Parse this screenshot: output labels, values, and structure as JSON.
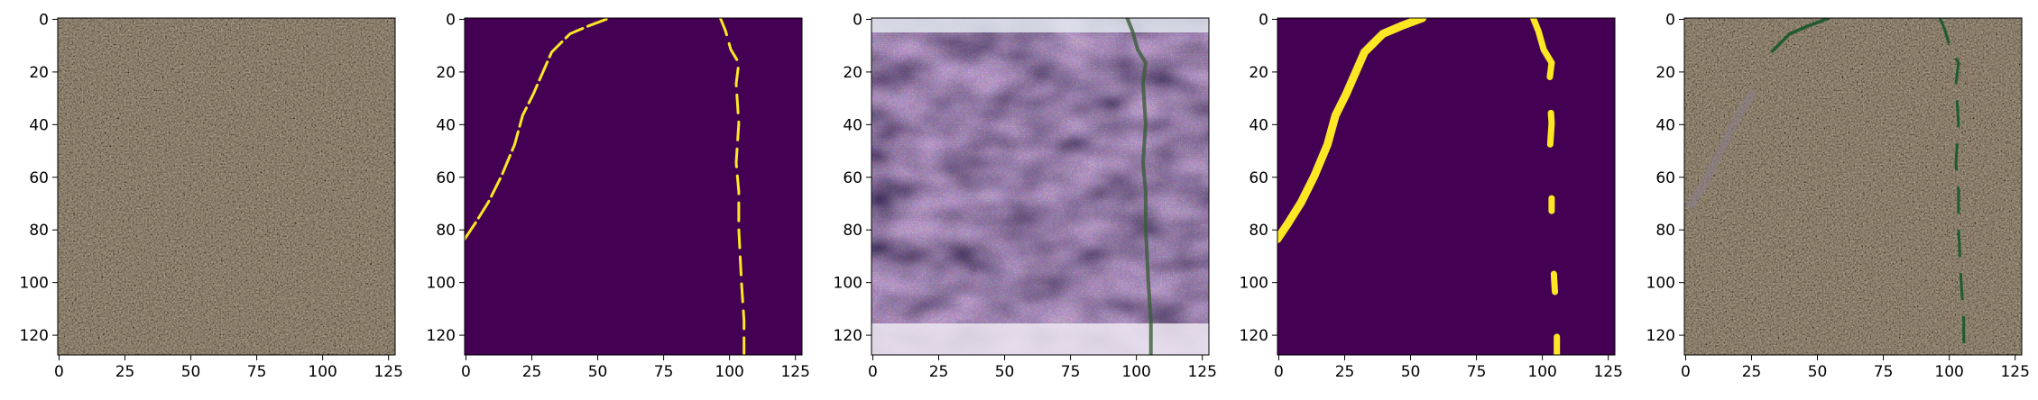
{
  "figure": {
    "panels": [
      {
        "name": "input-image",
        "kind": "photo"
      },
      {
        "name": "ground-truth-mask",
        "kind": "mask"
      },
      {
        "name": "feature-map",
        "kind": "activation"
      },
      {
        "name": "predicted-mask",
        "kind": "mask_pred"
      },
      {
        "name": "overlay-image",
        "kind": "overlay"
      }
    ],
    "x_ticks": [
      "0",
      "25",
      "50",
      "75",
      "100",
      "125"
    ],
    "y_ticks": [
      "0",
      "20",
      "40",
      "60",
      "80",
      "100",
      "120"
    ],
    "x_tick_values": [
      0,
      25,
      50,
      75,
      100,
      125
    ],
    "y_tick_values": [
      0,
      20,
      40,
      60,
      80,
      100,
      120
    ],
    "image_size": 128
  },
  "colors": {
    "mask_background": "#440154",
    "mask_crack": "#fde725",
    "mask_edge": "#5ec962",
    "pavement": "#a59c8d",
    "overlay_crack": "#1f5b2e"
  }
}
